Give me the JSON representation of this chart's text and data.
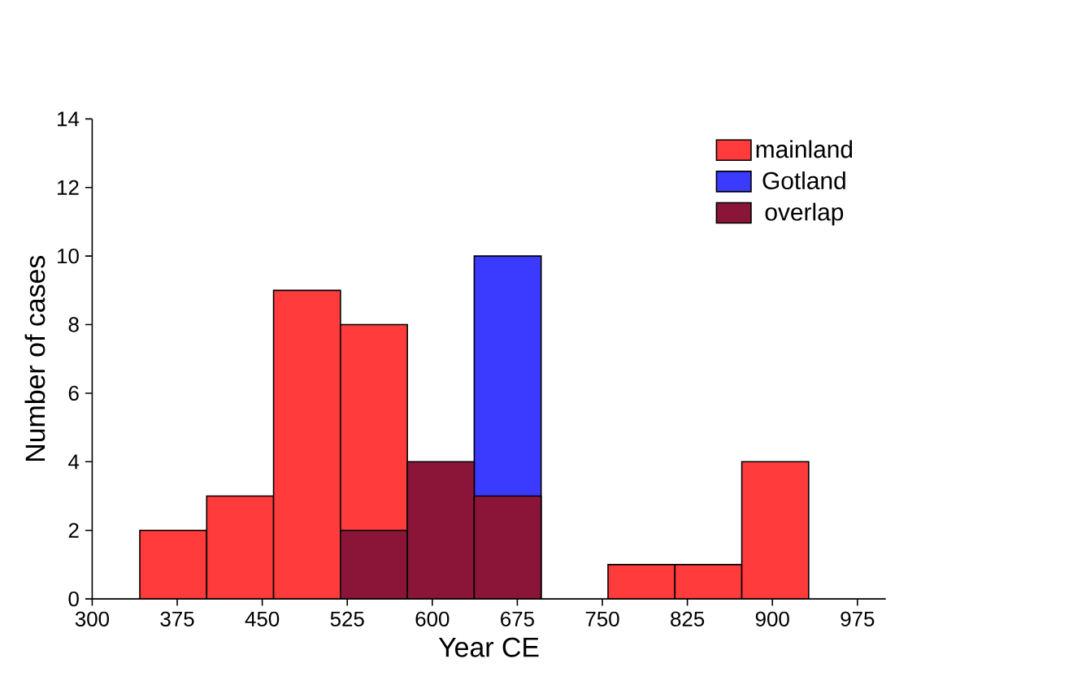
{
  "chart_data": {
    "type": "histogram",
    "xlabel": "Year CE",
    "ylabel": "Number of cases",
    "bins": [
      342,
      401,
      460,
      519,
      578,
      637,
      696,
      755,
      814,
      873,
      932
    ],
    "series": [
      {
        "name": "mainland",
        "color": "#ff3b3b",
        "values": [
          2,
          3,
          9,
          8,
          null,
          null,
          0,
          1,
          1,
          4
        ]
      },
      {
        "name": "Gotland",
        "color": "#3b3bff",
        "values": [
          0,
          0,
          0,
          null,
          null,
          10,
          0,
          0,
          0,
          0
        ]
      },
      {
        "name": "overlap",
        "color": "#8b1538",
        "values": [
          0,
          0,
          0,
          2,
          4,
          3,
          0,
          0,
          0,
          0
        ]
      }
    ],
    "xlim": [
      300,
      1000
    ],
    "ylim": [
      0,
      14
    ],
    "xticks": [
      300,
      375,
      450,
      525,
      600,
      675,
      750,
      825,
      900,
      975
    ],
    "yticks": [
      0,
      2,
      4,
      6,
      8,
      10,
      12,
      14
    ],
    "grid": false,
    "legend": "top right"
  }
}
